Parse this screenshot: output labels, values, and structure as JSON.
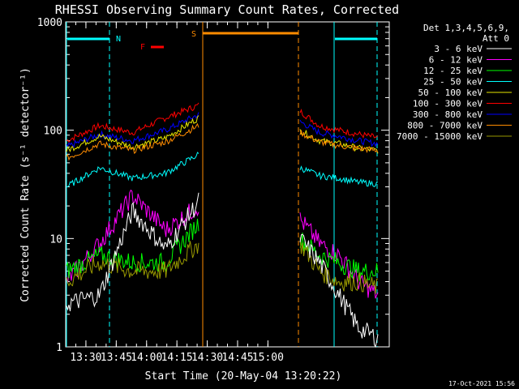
{
  "chart_data": {
    "type": "line",
    "title": "RHESSI Observing Summary Count Rates, Corrected",
    "xlabel": "Start Time (20-May-04 13:20:22)",
    "ylabel": "Corrected Count Rate (s⁻¹ detector⁻¹)",
    "yscale": "log",
    "ylim": [
      1,
      1000
    ],
    "xlim_minutes": [
      0,
      160
    ],
    "x_ticks": [
      {
        "label": "13:30",
        "min": 10
      },
      {
        "label": "13:45",
        "min": 25
      },
      {
        "label": "14:00",
        "min": 40
      },
      {
        "label": "14:15",
        "min": 55
      },
      {
        "label": "14:30",
        "min": 70
      },
      {
        "label": "14:45",
        "min": 85
      },
      {
        "label": "15:00",
        "min": 100
      }
    ],
    "y_ticks": [
      {
        "label": "1",
        "value": 1
      },
      {
        "label": "10",
        "value": 10
      },
      {
        "label": "100",
        "value": 100
      },
      {
        "label": "1000",
        "value": 1000
      }
    ],
    "legend": {
      "header": [
        "Det 1,3,4,5,6,9,",
        "Att 0"
      ],
      "entries": [
        {
          "label": "3 - 6 keV",
          "color": "#ffffff"
        },
        {
          "label": "6 - 12 keV",
          "color": "#ff00ff"
        },
        {
          "label": "12 - 25 keV",
          "color": "#00ff00"
        },
        {
          "label": "25 - 50 keV",
          "color": "#00ffff"
        },
        {
          "label": "50 - 100 keV",
          "color": "#e6e600"
        },
        {
          "label": "100 - 300 keV",
          "color": "#ff0000"
        },
        {
          "label": "300 - 800 keV",
          "color": "#0000ff"
        },
        {
          "label": "800 - 7000 keV",
          "color": "#ff8c00"
        },
        {
          "label": "7000 - 15000 keV",
          "color": "#999900"
        }
      ]
    },
    "flags": {
      "night": {
        "label": "N",
        "color": "#00ffff"
      },
      "flare": {
        "label": "F",
        "color": "#ff0000"
      },
      "saa": {
        "label": "S",
        "color": "#ff8c00"
      }
    },
    "series_shapes": [
      {
        "name": "100 - 300 keV",
        "seg1": [
          80,
          110,
          95,
          130,
          170
        ],
        "seg2": [
          150,
          110,
          100,
          92,
          85
        ]
      },
      {
        "name": "300 - 800 keV",
        "seg1": [
          70,
          92,
          80,
          100,
          140
        ],
        "seg2": [
          120,
          95,
          88,
          80,
          75
        ]
      },
      {
        "name": "50 - 100 keV",
        "seg1": [
          65,
          88,
          70,
          85,
          130
        ],
        "seg2": [
          100,
          80,
          75,
          68,
          65
        ]
      },
      {
        "name": "800 - 7000 keV",
        "seg1": [
          55,
          75,
          65,
          78,
          110
        ],
        "seg2": [
          95,
          78,
          72,
          68,
          65
        ]
      },
      {
        "name": "25 - 50 keV",
        "seg1": [
          30,
          45,
          36,
          40,
          60
        ],
        "seg2": [
          45,
          38,
          36,
          33,
          32
        ]
      },
      {
        "name": "6 - 12 keV",
        "seg1": [
          4,
          9,
          25,
          12,
          20
        ],
        "seg2": [
          15,
          9,
          7,
          4,
          3
        ]
      },
      {
        "name": "12 - 25 keV",
        "seg1": [
          5,
          7,
          6,
          6,
          14
        ],
        "seg2": [
          10,
          7,
          6,
          5,
          5
        ]
      },
      {
        "name": "7000 - 15000 keV",
        "seg1": [
          4,
          6,
          5,
          5,
          9
        ],
        "seg2": [
          9,
          5,
          4,
          4,
          3.5
        ]
      },
      {
        "name": "3 - 6 keV",
        "seg1": [
          2.5,
          3,
          18,
          8,
          22
        ],
        "seg2": [
          10,
          6,
          3,
          1.5,
          1.2
        ]
      }
    ],
    "footer_date": "17-Oct-2021 15:56"
  }
}
